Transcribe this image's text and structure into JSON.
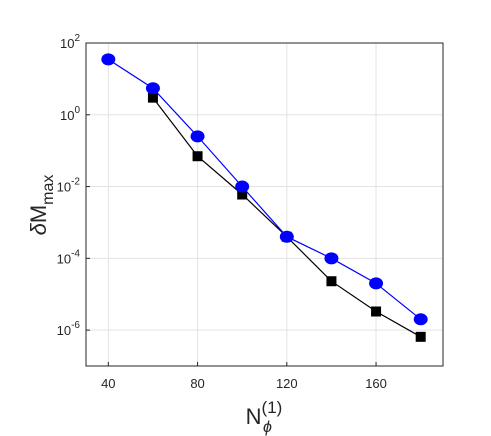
{
  "chart_data": {
    "type": "line",
    "title": "",
    "xlabel": {
      "base": "N",
      "subscript": "ϕ",
      "superscript": "(1)"
    },
    "ylabel": {
      "prefix": "δ",
      "base": "M",
      "subscript": "max"
    },
    "x_scale": "linear",
    "y_scale": "log",
    "xlim": [
      30,
      190
    ],
    "ylim": [
      1e-07,
      100
    ],
    "grid": true,
    "legend": "none",
    "x_ticks": [
      {
        "value": 40,
        "label": "40"
      },
      {
        "value": 80,
        "label": "80"
      },
      {
        "value": 120,
        "label": "120"
      },
      {
        "value": 160,
        "label": "160"
      }
    ],
    "y_ticks": [
      {
        "value": 100,
        "base": "10",
        "exp": "2"
      },
      {
        "value": 1,
        "base": "10",
        "exp": "0"
      },
      {
        "value": 0.01,
        "base": "10",
        "exp": "-2"
      },
      {
        "value": 0.0001,
        "base": "10",
        "exp": "-4"
      },
      {
        "value": 1e-06,
        "base": "10",
        "exp": "-6"
      }
    ],
    "series": [
      {
        "marker": "circle",
        "color": "#0000ff",
        "x": [
          40,
          60,
          80,
          100,
          120,
          140,
          160,
          180
        ],
        "y": [
          35,
          5.5,
          0.25,
          0.01,
          0.0004,
          0.0001,
          2e-05,
          2e-06
        ]
      },
      {
        "marker": "square",
        "color": "#000000",
        "x": [
          60,
          80,
          100,
          120,
          140,
          160,
          180
        ],
        "y": [
          3,
          0.07,
          0.006,
          0.0004,
          2.3e-05,
          3.3e-06,
          6.5e-07
        ]
      }
    ]
  }
}
